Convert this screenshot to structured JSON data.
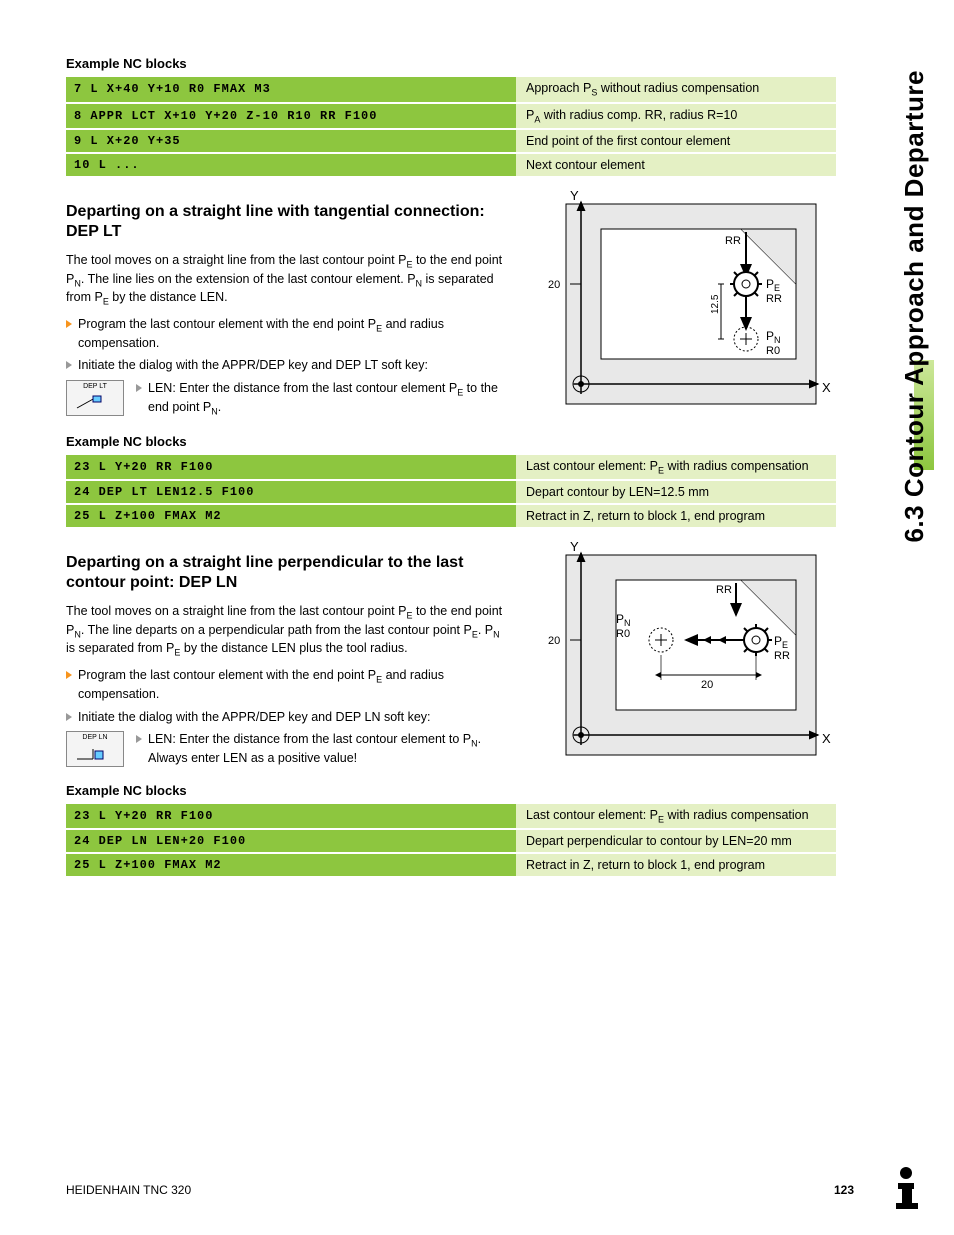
{
  "side_tab": "6.3 Contour Approach and Departure",
  "blocks1_title": "Example NC blocks",
  "table1": {
    "rows": [
      {
        "code": "7 L X+40 Y+10 R0 FMAX M3",
        "desc_pre": "Approach P",
        "desc_sub": "S",
        "desc_post": " without radius compensation"
      },
      {
        "code": "8 APPR LCT X+10 Y+20 Z-10 R10 RR F100",
        "desc_pre": "P",
        "desc_sub": "A",
        "desc_post": " with radius comp. RR, radius R=10"
      },
      {
        "code": "9 L X+20 Y+35",
        "desc_pre": "End point of the first contour element",
        "desc_sub": "",
        "desc_post": ""
      },
      {
        "code": "10 L ...",
        "desc_pre": "Next contour element",
        "desc_sub": "",
        "desc_post": ""
      }
    ]
  },
  "section1": {
    "heading": "Departing on a straight line with tangential connection: DEP LT",
    "para_parts": [
      "The tool moves on a straight line from the last contour point P",
      "E",
      " to the end point P",
      "N",
      ". The line lies on the extension of the last contour element. P",
      "N",
      " is separated from P",
      "E",
      " by the distance LEN."
    ],
    "bullet1_parts": [
      "Program the last contour element with the end point P",
      "E",
      " and radius compensation."
    ],
    "bullet2": "Initiate the dialog with the APPR/DEP key and DEP LT soft key:",
    "softkey_label": "DEP LT",
    "len_parts": [
      "LEN: Enter the distance from the last contour element P",
      "E",
      " to the end point P",
      "N",
      "."
    ]
  },
  "diagram1": {
    "Y": "Y",
    "X": "X",
    "y20": "20",
    "len125": "12.5",
    "RR": "RR",
    "PE": "P",
    "PE_sub": "E",
    "PN": "P",
    "PN_sub": "N",
    "R0": "R0"
  },
  "blocks2_title": "Example NC blocks",
  "table2": {
    "rows": [
      {
        "code": "23 L Y+20 RR F100",
        "desc_pre": "Last contour element: P",
        "desc_sub": "E",
        "desc_post": " with radius compensation"
      },
      {
        "code": "24 DEP LT LEN12.5 F100",
        "desc_pre": "Depart contour by LEN=12.5 mm",
        "desc_sub": "",
        "desc_post": ""
      },
      {
        "code": "25 L Z+100 FMAX M2",
        "desc_pre": "Retract in Z, return to block 1, end program",
        "desc_sub": "",
        "desc_post": ""
      }
    ]
  },
  "section2": {
    "heading": "Departing on a straight line perpendicular to the last contour point: DEP LN",
    "para_parts": [
      "The tool moves on a straight line from the last contour point P",
      "E",
      " to the end point P",
      "N",
      ". The line departs on a perpendicular path from the last contour point P",
      "E",
      ". P",
      "N",
      " is separated from P",
      "E",
      " by the distance LEN plus the tool radius."
    ],
    "bullet1_parts": [
      "Program the last contour element with the end point P",
      "E",
      " and radius compensation."
    ],
    "bullet2": "Initiate the dialog with the APPR/DEP key and DEP LN soft key:",
    "softkey_label": "DEP LN",
    "len_parts": [
      "LEN: Enter the distance from the last contour element to P",
      "N",
      ".\nAlways enter LEN as a positive value!"
    ]
  },
  "diagram2": {
    "Y": "Y",
    "X": "X",
    "y20": "20",
    "x20": "20",
    "RR": "RR",
    "PE": "P",
    "PE_sub": "E",
    "PN": "P",
    "PN_sub": "N",
    "R0": "R0"
  },
  "blocks3_title": "Example NC blocks",
  "table3": {
    "rows": [
      {
        "code": "23 L Y+20 RR F100",
        "desc_pre": "Last contour element: P",
        "desc_sub": "E",
        "desc_post": " with radius compensation"
      },
      {
        "code": "24 DEP LN LEN+20 F100",
        "desc_pre": "Depart perpendicular to contour by LEN=20 mm",
        "desc_sub": "",
        "desc_post": ""
      },
      {
        "code": "25 L Z+100 FMAX M2",
        "desc_pre": "Retract in Z, return to block 1, end program",
        "desc_sub": "",
        "desc_post": ""
      }
    ]
  },
  "footer": {
    "left": "HEIDENHAIN TNC 320",
    "page": "123"
  },
  "colors": {
    "green_main": "#8dc63f",
    "green_light": "#e4f0c4",
    "diagram_fill": "#e8e8e8"
  }
}
